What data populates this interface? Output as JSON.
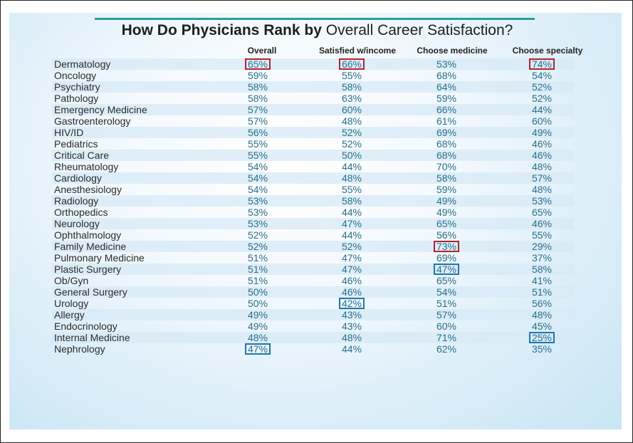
{
  "title": {
    "bold_part": "How Do Physicians Rank by",
    "regular_part": "Overall Career Satisfaction?"
  },
  "columns": [
    "Overall",
    "Satisfied w/income",
    "Choose medicine",
    "Choose specialty"
  ],
  "highlight_colors": {
    "red": "#b2242f",
    "blue": "#1f77b0"
  },
  "rows": [
    {
      "specialty": "Dermatology",
      "values": [
        "65%",
        "66%",
        "53%",
        "74%"
      ]
    },
    {
      "specialty": "Oncology",
      "values": [
        "59%",
        "55%",
        "68%",
        "54%"
      ]
    },
    {
      "specialty": "Psychiatry",
      "values": [
        "58%",
        "58%",
        "64%",
        "52%"
      ]
    },
    {
      "specialty": "Pathology",
      "values": [
        "58%",
        "63%",
        "59%",
        "52%"
      ]
    },
    {
      "specialty": "Emergency Medicine",
      "values": [
        "57%",
        "60%",
        "66%",
        "44%"
      ]
    },
    {
      "specialty": "Gastroenterology",
      "values": [
        "57%",
        "48%",
        "61%",
        "60%"
      ]
    },
    {
      "specialty": "HIV/ID",
      "values": [
        "56%",
        "52%",
        "69%",
        "49%"
      ]
    },
    {
      "specialty": "Pediatrics",
      "values": [
        "55%",
        "52%",
        "68%",
        "46%"
      ]
    },
    {
      "specialty": "Critical Care",
      "values": [
        "55%",
        "50%",
        "68%",
        "46%"
      ]
    },
    {
      "specialty": "Rheumatology",
      "values": [
        "54%",
        "44%",
        "70%",
        "48%"
      ]
    },
    {
      "specialty": "Cardiology",
      "values": [
        "54%",
        "48%",
        "58%",
        "57%"
      ]
    },
    {
      "specialty": "Anesthesiology",
      "values": [
        "54%",
        "55%",
        "59%",
        "48%"
      ]
    },
    {
      "specialty": "Radiology",
      "values": [
        "53%",
        "58%",
        "49%",
        "53%"
      ]
    },
    {
      "specialty": "Orthopedics",
      "values": [
        "53%",
        "44%",
        "49%",
        "65%"
      ]
    },
    {
      "specialty": "Neurology",
      "values": [
        "53%",
        "47%",
        "65%",
        "46%"
      ]
    },
    {
      "specialty": "Ophthalmology",
      "values": [
        "52%",
        "44%",
        "56%",
        "55%"
      ]
    },
    {
      "specialty": "Family Medicine",
      "values": [
        "52%",
        "52%",
        "73%",
        "29%"
      ]
    },
    {
      "specialty": "Pulmonary Medicine",
      "values": [
        "51%",
        "47%",
        "69%",
        "37%"
      ]
    },
    {
      "specialty": "Plastic Surgery",
      "values": [
        "51%",
        "47%",
        "47%",
        "58%"
      ]
    },
    {
      "specialty": "Ob/Gyn",
      "values": [
        "51%",
        "46%",
        "65%",
        "41%"
      ]
    },
    {
      "specialty": "General Surgery",
      "values": [
        "50%",
        "46%",
        "54%",
        "51%"
      ]
    },
    {
      "specialty": "Urology",
      "values": [
        "50%",
        "42%",
        "51%",
        "56%"
      ]
    },
    {
      "specialty": "Allergy",
      "values": [
        "49%",
        "43%",
        "57%",
        "48%"
      ]
    },
    {
      "specialty": "Endocrinology",
      "values": [
        "49%",
        "43%",
        "60%",
        "45%"
      ]
    },
    {
      "specialty": "Internal Medicine",
      "values": [
        "48%",
        "48%",
        "71%",
        "25%"
      ]
    },
    {
      "specialty": "Nephrology",
      "values": [
        "47%",
        "44%",
        "62%",
        "35%"
      ]
    }
  ],
  "highlights": [
    {
      "row": 0,
      "col": 0,
      "color": "red"
    },
    {
      "row": 0,
      "col": 1,
      "color": "red"
    },
    {
      "row": 0,
      "col": 3,
      "color": "red"
    },
    {
      "row": 16,
      "col": 2,
      "color": "red"
    },
    {
      "row": 18,
      "col": 2,
      "color": "blue"
    },
    {
      "row": 21,
      "col": 1,
      "color": "blue"
    },
    {
      "row": 24,
      "col": 3,
      "color": "blue"
    },
    {
      "row": 25,
      "col": 0,
      "color": "blue"
    }
  ]
}
